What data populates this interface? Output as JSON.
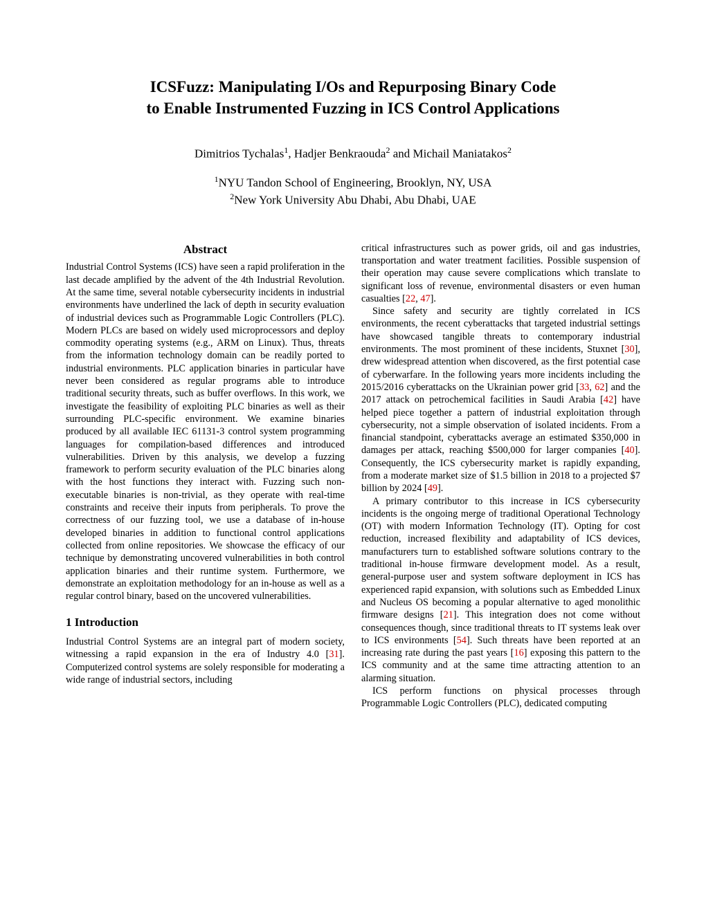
{
  "title_line1": "ICSFuzz: Manipulating I/Os and Repurposing Binary Code",
  "title_line2": "to Enable Instrumented Fuzzing in ICS Control Applications",
  "authors": {
    "a1": "Dimitrios Tychalas",
    "a1_sup": "1",
    "sep1": ",  ",
    "a2": "Hadjer Benkraouda",
    "a2_sup": "2",
    "sep2": " and  ",
    "a3": "Michail Maniatakos",
    "a3_sup": "2"
  },
  "affil": {
    "l1_sup": "1",
    "l1": "NYU Tandon School of Engineering, Brooklyn, NY, USA",
    "l2_sup": "2",
    "l2": "New York University Abu Dhabi, Abu Dhabi, UAE"
  },
  "abstract_heading": "Abstract",
  "abstract_text": "Industrial Control Systems (ICS) have seen a rapid proliferation in the last decade amplified by the advent of the 4th Industrial Revolution. At the same time, several notable cybersecurity incidents in industrial environments have underlined the lack of depth in security evaluation of industrial devices such as Programmable Logic Controllers (PLC). Modern PLCs are based on widely used microprocessors and deploy commodity operating systems (e.g., ARM on Linux). Thus, threats from the information technology domain can be readily ported to industrial environments. PLC application binaries in particular have never been considered as regular programs able to introduce traditional security threats, such as buffer overflows. In this work, we investigate the feasibility of exploiting PLC binaries as well as their surrounding PLC-specific environment. We examine binaries produced by all available IEC 61131-3 control system programming languages for compilation-based differences and introduced vulnerabilities. Driven by this analysis, we develop a fuzzing framework to perform security evaluation of the PLC binaries along with the host functions they interact with. Fuzzing such non-executable binaries is non-trivial, as they operate with real-time constraints and receive their inputs from peripherals. To prove the correctness of our fuzzing tool, we use a database of in-house developed binaries in addition to functional control applications collected from online repositories. We showcase the efficacy of our technique by demonstrating uncovered vulnerabilities in both control application binaries and their runtime system. Furthermore, we demonstrate an exploitation methodology for an in-house as well as a regular control binary, based on the uncovered vulnerabilities.",
  "section1_heading": "1    Introduction",
  "intro_p1_a": "Industrial Control Systems are an integral part of modern society, witnessing a rapid expansion in the era of Industry 4.0 [",
  "intro_p1_c1": "31",
  "intro_p1_b": "]. Computerized control systems are solely responsible for moderating a wide range of industrial sectors, including",
  "right_p1_a": "critical infrastructures such as power grids, oil and gas industries, transportation and water treatment facilities. Possible suspension of their operation may cause severe complications which translate to significant loss of revenue, environmental disasters or even human casualties [",
  "right_p1_c1": "22",
  "right_p1_sep1": ", ",
  "right_p1_c2": "47",
  "right_p1_b": "].",
  "right_p2_a": "Since safety and security are tightly correlated in ICS environments, the recent cyberattacks that targeted industrial settings have showcased tangible threats to contemporary industrial environments. The most prominent of these incidents, Stuxnet [",
  "right_p2_c1": "30",
  "right_p2_b": "], drew widespread attention when discovered, as the first potential case of cyberwarfare. In the following years more incidents including the 2015/2016 cyberattacks on the Ukrainian power grid [",
  "right_p2_c2": "33",
  "right_p2_sep1": ", ",
  "right_p2_c3": "62",
  "right_p2_c": "] and the 2017 attack on petrochemical facilities in Saudi Arabia [",
  "right_p2_c4": "42",
  "right_p2_d": "] have helped piece together a pattern of industrial exploitation through cybersecurity, not a simple observation of isolated incidents. From a financial standpoint, cyberattacks average an estimated $350,000 in damages per attack, reaching $500,000 for larger companies [",
  "right_p2_c5": "40",
  "right_p2_e": "]. Consequently, the ICS cybersecurity market is rapidly expanding, from a moderate market size of $1.5 billion in 2018 to a projected $7 billion by 2024 [",
  "right_p2_c6": "49",
  "right_p2_f": "].",
  "right_p3_a": "A primary contributor to this increase in ICS cybersecurity incidents is the ongoing merge of traditional Operational Technology (OT) with modern Information Technology (IT). Opting for cost reduction, increased flexibility and adaptability of ICS devices, manufacturers turn to established software solutions contrary to the traditional in-house firmware development model. As a result, general-purpose user and system software deployment in ICS has experienced rapid expansion, with solutions such as Embedded Linux and Nucleus OS becoming a popular alternative to aged monolithic firmware designs [",
  "right_p3_c1": "21",
  "right_p3_b": "]. This integration does not come without consequences though, since traditional threats to IT systems leak over to ICS environments [",
  "right_p3_c2": "54",
  "right_p3_c": "]. Such threats have been reported at an increasing rate during the past years [",
  "right_p3_c3": "16",
  "right_p3_d": "] exposing this pattern to the ICS community and at the same time attracting attention to an alarming situation.",
  "right_p4": "ICS perform functions on physical processes through Programmable Logic Controllers (PLC), dedicated computing",
  "colors": {
    "cite": "#cc0000",
    "text": "#000000",
    "bg": "#ffffff"
  },
  "fontsizes": {
    "title": 23,
    "authors": 17,
    "body": 14.3,
    "section": 17
  }
}
